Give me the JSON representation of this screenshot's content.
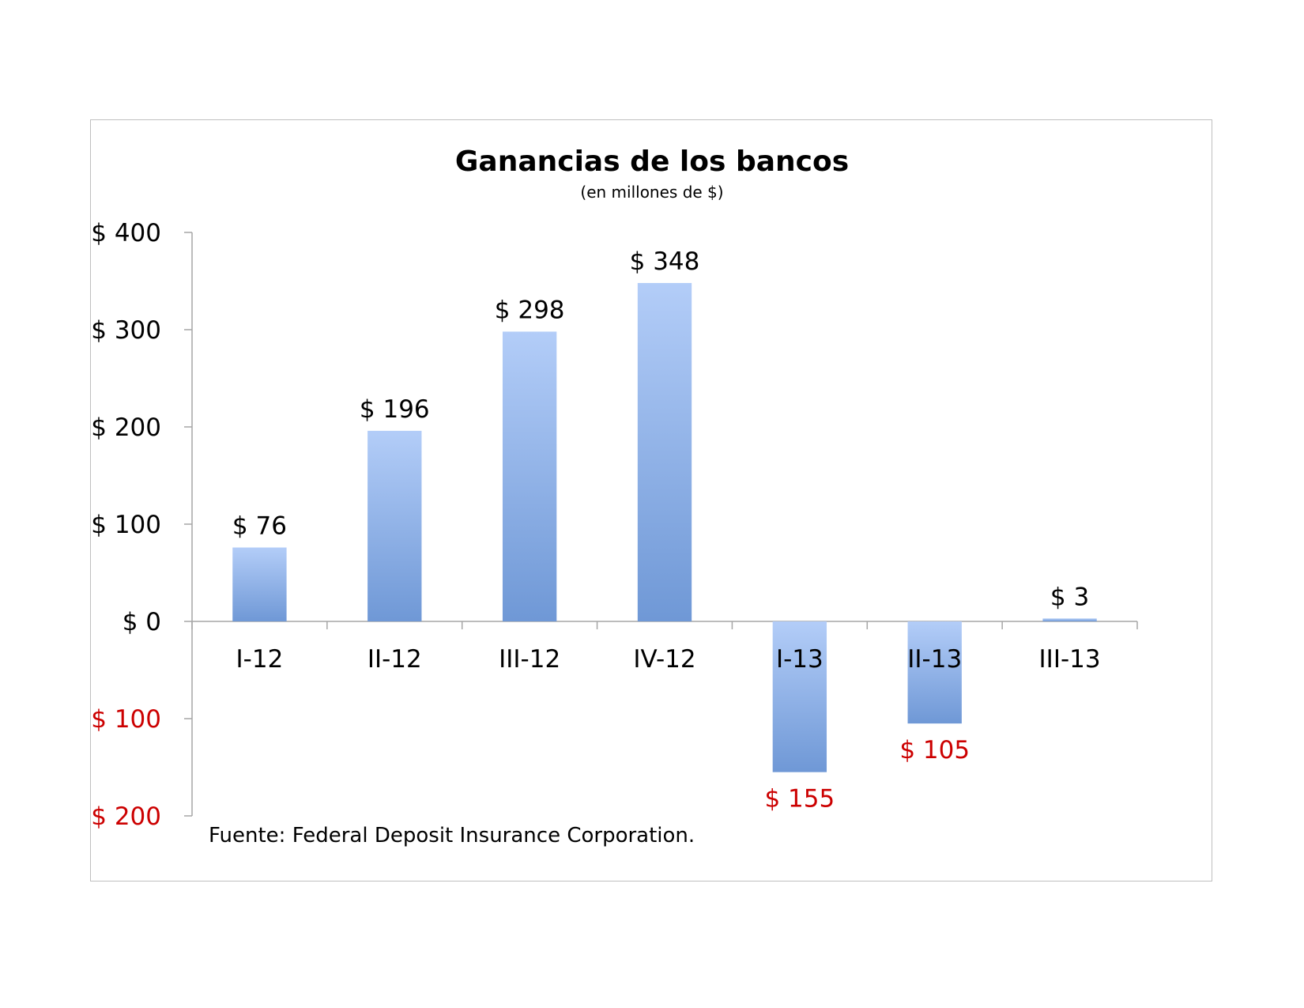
{
  "chart_data": {
    "type": "bar",
    "title": "Ganancias de los bancos",
    "subtitle": "(en millones de $)",
    "categories": [
      "I-12",
      "II-12",
      "III-12",
      "IV-12",
      "I-13",
      "II-13",
      "III-13"
    ],
    "values": [
      76,
      196,
      298,
      348,
      -155,
      -105,
      3
    ],
    "data_labels": [
      "$ 76",
      "$ 196",
      "$ 298",
      "$ 348",
      "$ 155",
      "$ 105",
      "$ 3"
    ],
    "ylim": [
      -200,
      400
    ],
    "yticks": [
      400,
      300,
      200,
      100,
      0,
      -100,
      -200
    ],
    "ytick_labels": [
      "$ 400",
      "$ 300",
      "$ 200",
      "$ 100",
      "$ 0",
      "$ 100",
      "$ 200"
    ],
    "xlabel": "",
    "ylabel": "",
    "grid": false,
    "legend": "none",
    "source_note": "Fuente: Federal Deposit Insurance Corporation.",
    "colors": {
      "bar_top": "#b3cdf8",
      "bar_bottom": "#6f98d6",
      "negative_text": "#cc0000",
      "positive_text": "#000000",
      "axis": "#a6a6a6"
    }
  }
}
